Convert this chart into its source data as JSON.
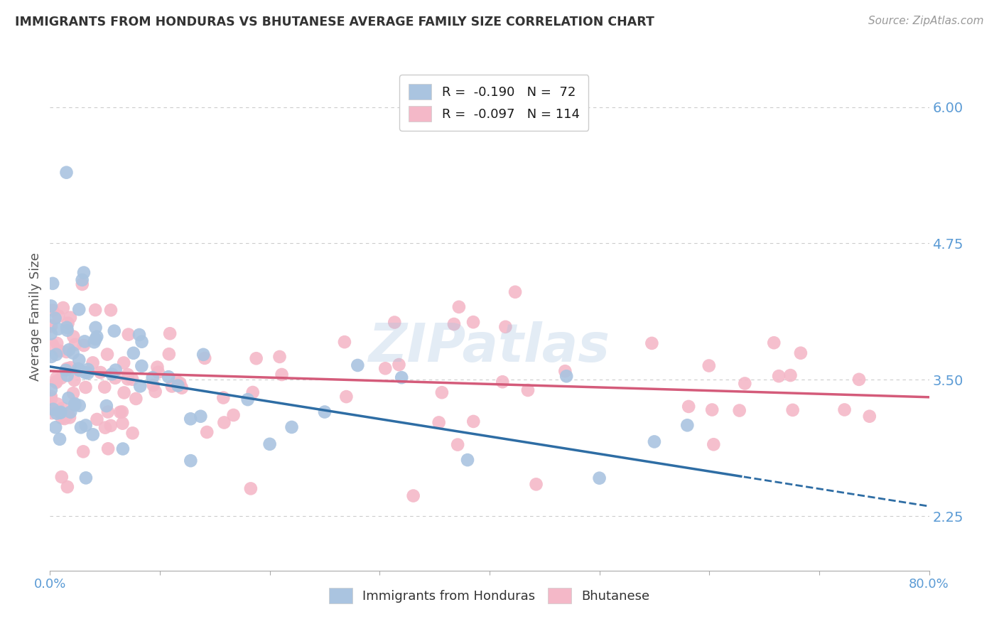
{
  "title": "IMMIGRANTS FROM HONDURAS VS BHUTANESE AVERAGE FAMILY SIZE CORRELATION CHART",
  "source": "Source: ZipAtlas.com",
  "ylabel": "Average Family Size",
  "yticks": [
    2.25,
    3.5,
    4.75,
    6.0
  ],
  "ytick_labels": [
    "2.25",
    "3.50",
    "4.75",
    "6.00"
  ],
  "xlim": [
    0.0,
    80.0
  ],
  "ylim": [
    1.75,
    6.4
  ],
  "legend_label_blue": "Immigrants from Honduras",
  "legend_label_pink": "Bhutanese",
  "watermark": "ZIPatlas",
  "background_color": "#ffffff",
  "grid_color": "#cccccc",
  "title_color": "#333333",
  "axis_tick_color": "#5b9bd5",
  "blue_scatter_color": "#aac4e0",
  "pink_scatter_color": "#f4b8c8",
  "blue_line_color": "#2e6da4",
  "pink_line_color": "#d45b7a",
  "blue_n": 72,
  "pink_n": 114,
  "blue_intercept": 3.62,
  "blue_slope": -0.016,
  "pink_intercept": 3.58,
  "pink_slope": -0.003,
  "blue_x_solid_end": 63.0,
  "xtick_positions": [
    0,
    10,
    20,
    30,
    40,
    50,
    60,
    70,
    80
  ],
  "xtick_labels_show": [
    "0.0%",
    "",
    "",
    "",
    "",
    "",
    "",
    "",
    "80.0%"
  ]
}
